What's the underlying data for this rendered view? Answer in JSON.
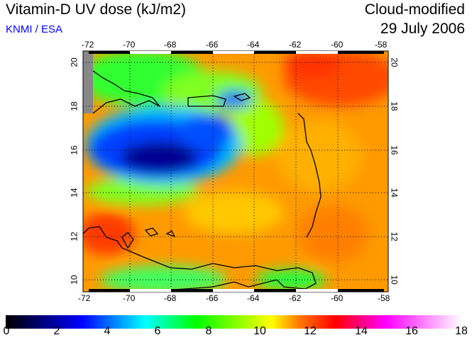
{
  "header": {
    "title": "Vitamin-D UV dose (kJ/m2)",
    "credit": "KNMI / ESA",
    "mode": "Cloud-modified",
    "date": "29 July 2006"
  },
  "map": {
    "lon_ticks": [
      "-72",
      "-70",
      "-68",
      "-66",
      "-64",
      "-62",
      "-60",
      "-58"
    ],
    "lat_ticks": [
      "20",
      "18",
      "16",
      "14",
      "12",
      "10"
    ],
    "lon_range": [
      -72.3,
      -57.8
    ],
    "lat_range": [
      9.5,
      20.5
    ]
  },
  "colorbar": {
    "labels": [
      "0",
      "2",
      "4",
      "6",
      "8",
      "10",
      "12",
      "14",
      "16",
      "18"
    ],
    "range": [
      0,
      18
    ],
    "stops": [
      {
        "v": 0,
        "c": "#000000"
      },
      {
        "v": 3,
        "c": "#0000ff"
      },
      {
        "v": 5.5,
        "c": "#00ffff"
      },
      {
        "v": 7.5,
        "c": "#00ff00"
      },
      {
        "v": 10.5,
        "c": "#ffff00"
      },
      {
        "v": 11.5,
        "c": "#ff8000"
      },
      {
        "v": 13,
        "c": "#ff0000"
      },
      {
        "v": 15,
        "c": "#ff00ff"
      },
      {
        "v": 18,
        "c": "#ffffff"
      }
    ]
  }
}
